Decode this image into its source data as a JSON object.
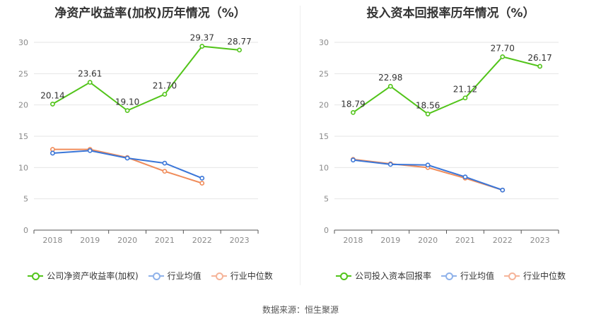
{
  "chart_data": [
    {
      "type": "line",
      "title": "净资产收益率(加权)历年情况（%）",
      "categories": [
        "2018",
        "2019",
        "2020",
        "2021",
        "2022",
        "2023"
      ],
      "ylim": [
        0,
        30
      ],
      "yticks": [
        "0",
        "5",
        "10",
        "15",
        "20",
        "25",
        "30"
      ],
      "grid": true,
      "legend_position": "bottom",
      "series": [
        {
          "name": "公司净资产收益率(加权)",
          "color": "#52c41a",
          "values": [
            20.14,
            23.61,
            19.1,
            21.7,
            29.37,
            28.77
          ],
          "labels": [
            "20.14",
            "23.61",
            "19.10",
            "21.70",
            "29.37",
            "28.77"
          ]
        },
        {
          "name": "行业均值",
          "color": "#3a76d8",
          "values": [
            12.3,
            12.7,
            11.5,
            10.7,
            8.3,
            null
          ]
        },
        {
          "name": "行业中位数",
          "color": "#f08c5a",
          "values": [
            12.9,
            12.9,
            11.6,
            9.4,
            7.5,
            null
          ]
        }
      ]
    },
    {
      "type": "line",
      "title": "投入资本回报率历年情况（%）",
      "categories": [
        "2018",
        "2019",
        "2020",
        "2021",
        "2022",
        "2023"
      ],
      "ylim": [
        0,
        30
      ],
      "yticks": [
        "0",
        "5",
        "10",
        "15",
        "20",
        "25",
        "30"
      ],
      "grid": true,
      "legend_position": "bottom",
      "series": [
        {
          "name": "公司投入资本回报率",
          "color": "#52c41a",
          "values": [
            18.79,
            22.98,
            18.56,
            21.12,
            27.7,
            26.17
          ],
          "labels": [
            "18.79",
            "22.98",
            "18.56",
            "21.12",
            "27.70",
            "26.17"
          ]
        },
        {
          "name": "行业均值",
          "color": "#3a76d8",
          "values": [
            11.2,
            10.5,
            10.4,
            8.5,
            6.4,
            null
          ]
        },
        {
          "name": "行业中位数",
          "color": "#f08c5a",
          "values": [
            11.3,
            10.6,
            10.0,
            8.3,
            6.4,
            null
          ]
        }
      ]
    }
  ],
  "legend_left": [
    {
      "label": "公司净资产收益率(加权)",
      "color": "#52c41a"
    },
    {
      "label": "行业均值",
      "color": "#8fb2ea"
    },
    {
      "label": "行业中位数",
      "color": "#f5b499"
    }
  ],
  "legend_right": [
    {
      "label": "公司投入资本回报率",
      "color": "#52c41a"
    },
    {
      "label": "行业均值",
      "color": "#8fb2ea"
    },
    {
      "label": "行业中位数",
      "color": "#f5b499"
    }
  ],
  "source_text": "数据来源：恒生聚源"
}
